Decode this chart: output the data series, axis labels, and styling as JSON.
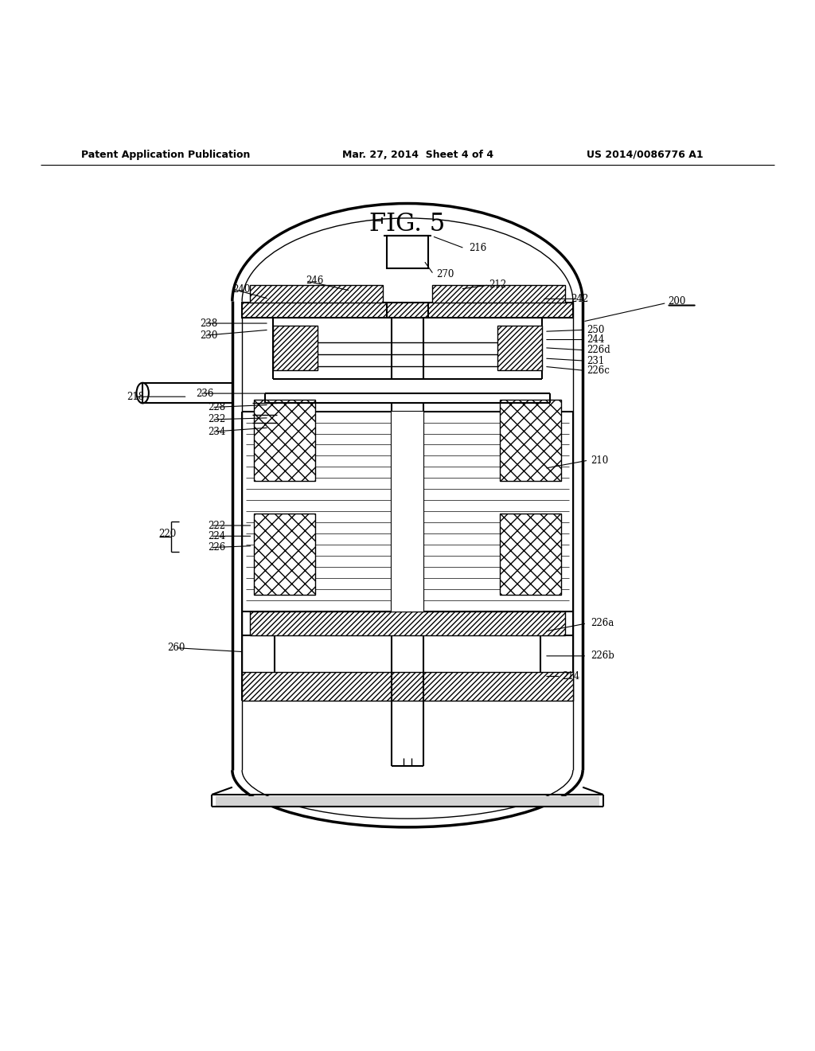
{
  "title": "FIG. 5",
  "header_left": "Patent Application Publication",
  "header_mid": "Mar. 27, 2014  Sheet 4 of 4",
  "header_right": "US 2014/0086776 A1",
  "bg_color": "#ffffff",
  "line_color": "#000000"
}
